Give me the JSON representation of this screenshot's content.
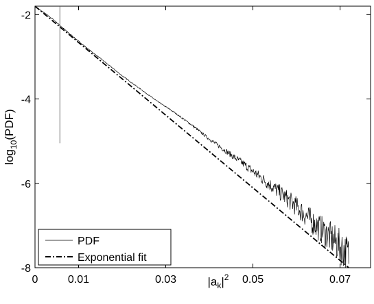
{
  "chart_data": {
    "type": "line",
    "xlabel": {
      "base": "|a",
      "sub": "k",
      "tail": "|",
      "sup": "2"
    },
    "ylabel": {
      "base": "log",
      "sub": "10",
      "tail": "(PDF)"
    },
    "xlim": [
      0,
      0.077
    ],
    "ylim": [
      -8,
      -1.8
    ],
    "xticks": [
      {
        "value": 0,
        "label": "0"
      },
      {
        "value": 0.01,
        "label": "0.01"
      },
      {
        "value": 0.03,
        "label": "0.03"
      },
      {
        "value": 0.05,
        "label": "0.05"
      },
      {
        "value": 0.07,
        "label": "0.07"
      }
    ],
    "yticks": [
      {
        "value": -2,
        "label": "-2"
      },
      {
        "value": -4,
        "label": "-4"
      },
      {
        "value": -6,
        "label": "-6"
      },
      {
        "value": -8,
        "label": "-8"
      }
    ],
    "grid": false,
    "legend": {
      "position": "bottom-left"
    },
    "series": [
      {
        "name": "PDF",
        "style": "solid-thin",
        "color": "#000000",
        "x": [
          0.0,
          0.004,
          0.008,
          0.012,
          0.016,
          0.02,
          0.024,
          0.028,
          0.032,
          0.036,
          0.04,
          0.044,
          0.048,
          0.052,
          0.056,
          0.06,
          0.064,
          0.068,
          0.072
        ],
        "y": [
          -1.8,
          -2.1,
          -2.46,
          -2.8,
          -3.12,
          -3.45,
          -3.75,
          -4.05,
          -4.32,
          -4.62,
          -4.95,
          -5.25,
          -5.55,
          -5.88,
          -6.2,
          -6.55,
          -6.95,
          -7.3,
          -7.7
        ],
        "spike": {
          "x": 0.0057,
          "y_top": -1.8,
          "y_bottom": -5.05
        }
      },
      {
        "name": "Exponential fit",
        "style": "dash-dot",
        "color": "#000000",
        "x": [
          0.0,
          0.072
        ],
        "y": [
          -1.8,
          -8.0
        ]
      }
    ]
  }
}
